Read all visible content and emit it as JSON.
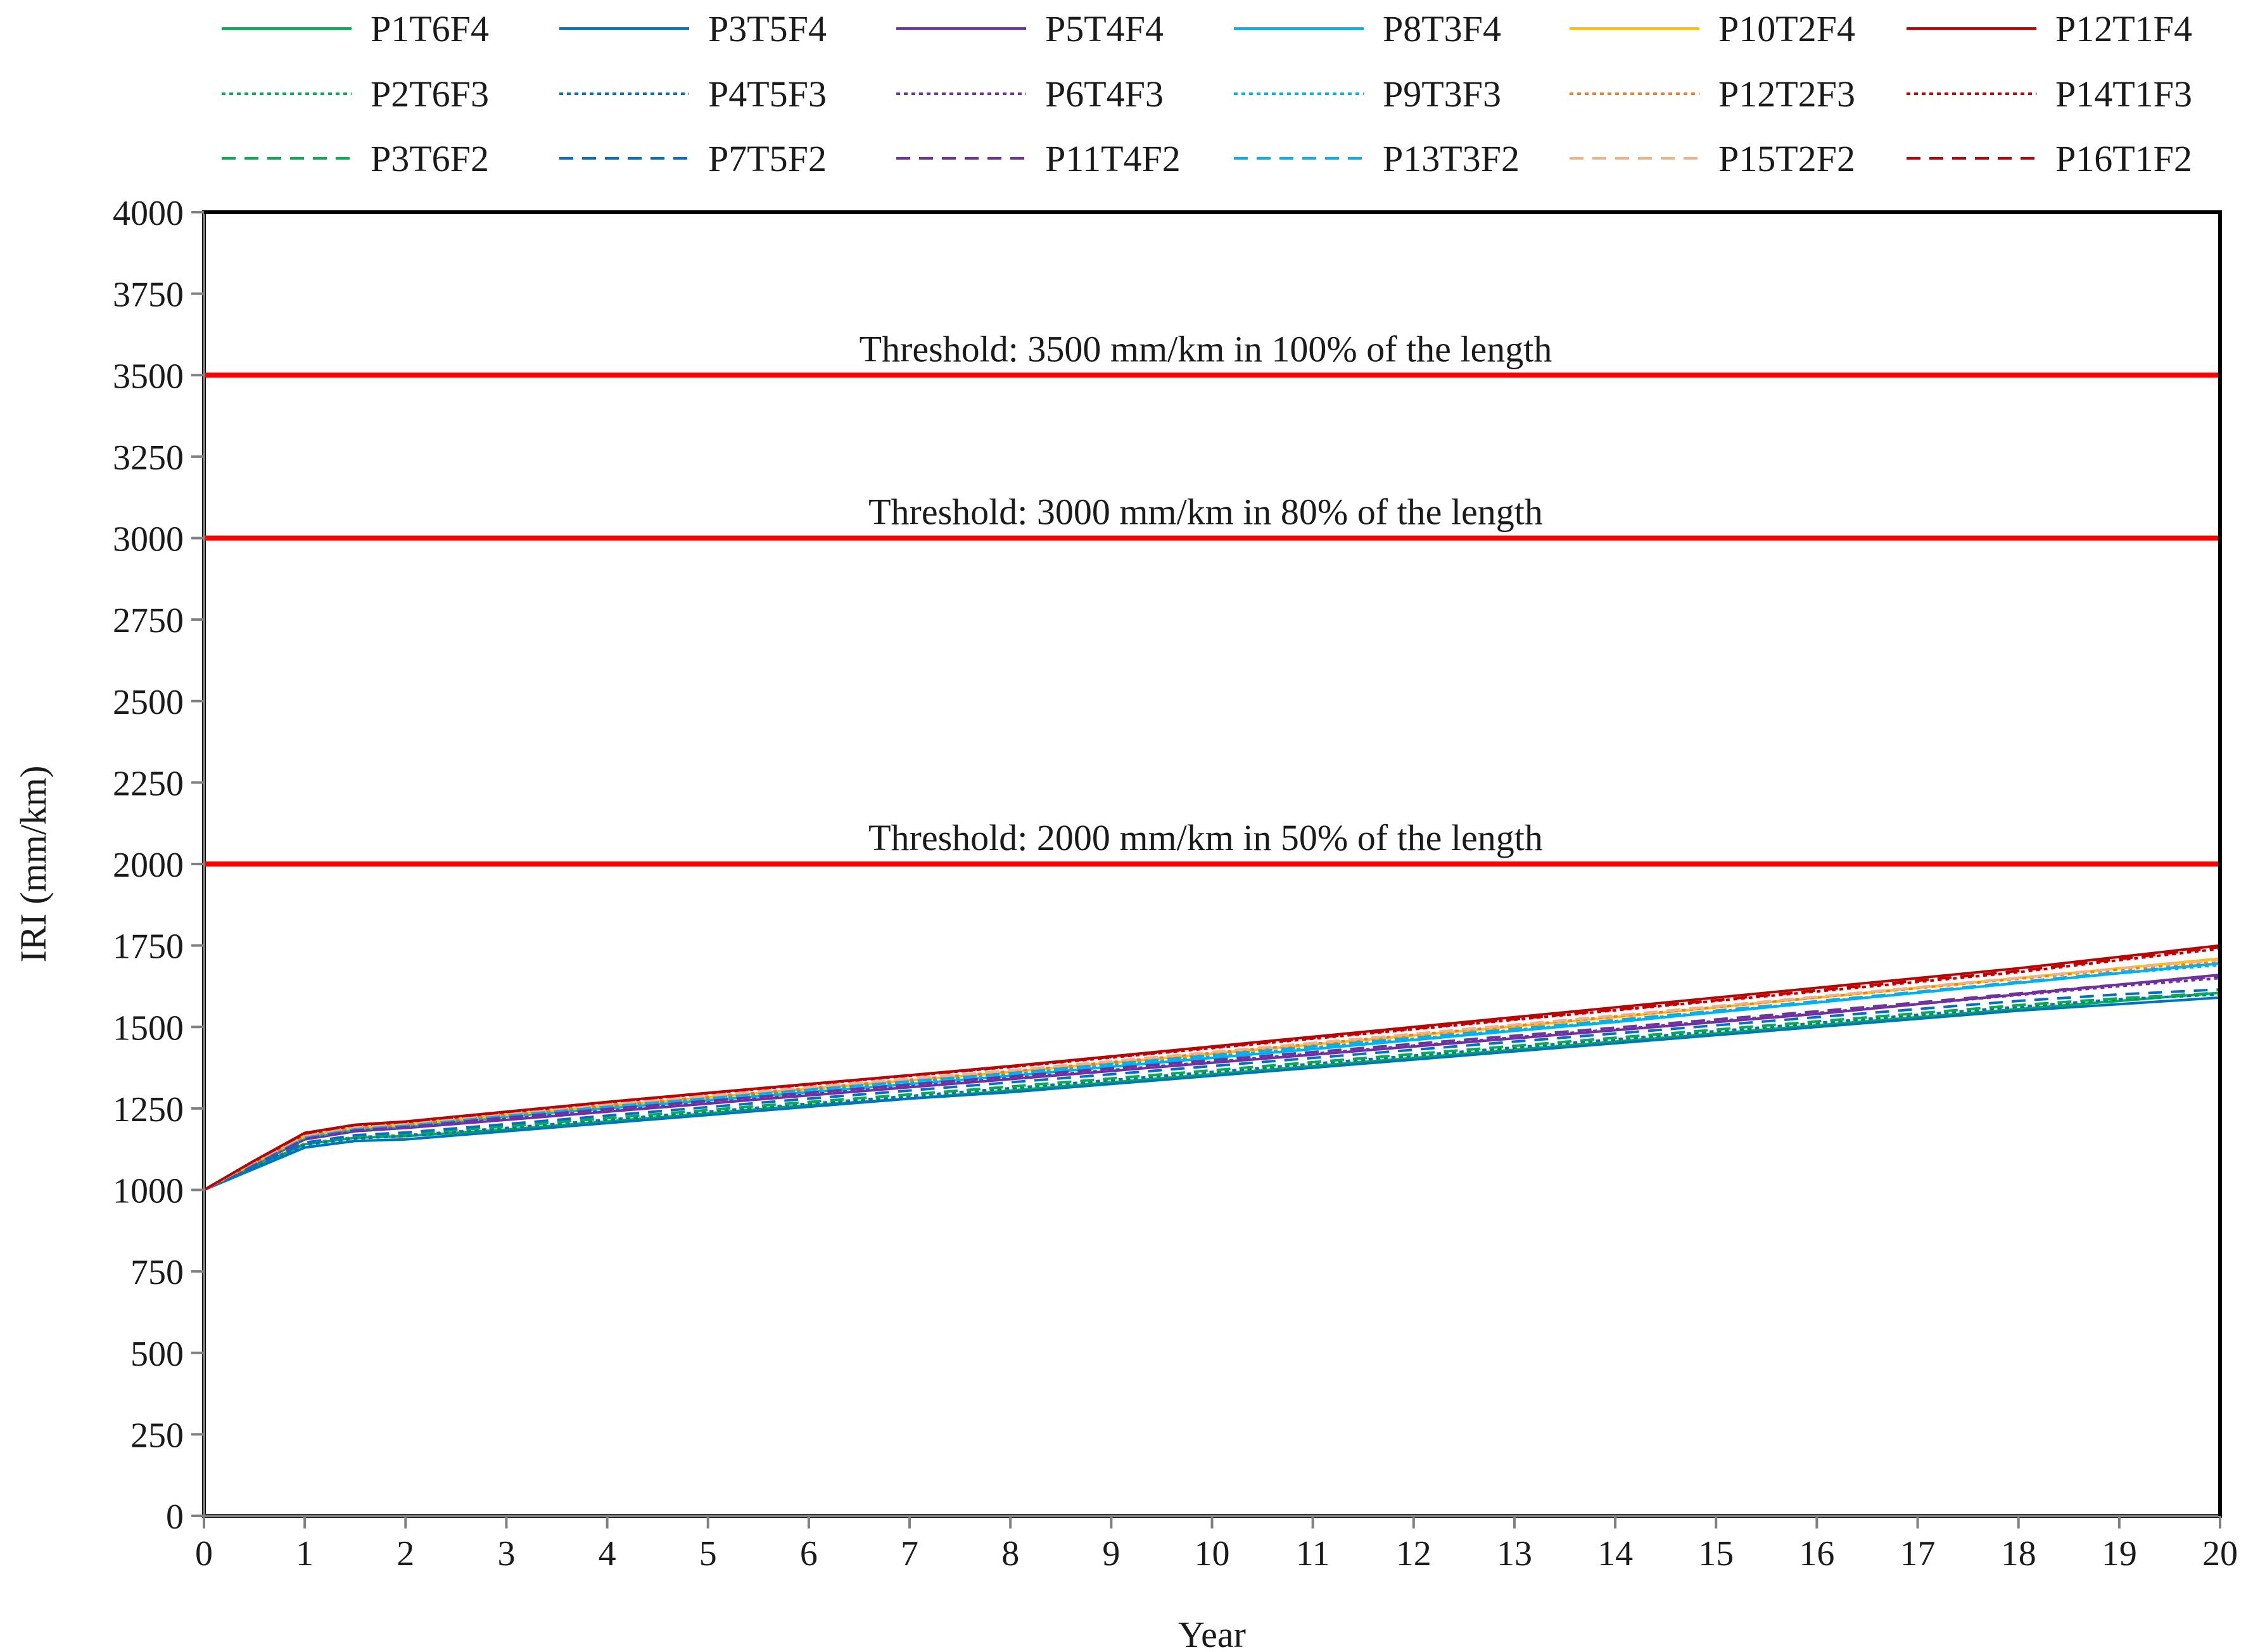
{
  "chart_data": {
    "type": "line",
    "xlabel": "Year",
    "ylabel": "IRI (mm/km)",
    "xlim": [
      0,
      20
    ],
    "ylim": [
      0,
      4000
    ],
    "x_ticks": [
      0,
      1,
      2,
      3,
      4,
      5,
      6,
      7,
      8,
      9,
      10,
      11,
      12,
      13,
      14,
      15,
      16,
      17,
      18,
      19,
      20
    ],
    "y_ticks": [
      0,
      250,
      500,
      750,
      1000,
      1250,
      1500,
      1750,
      2000,
      2250,
      2500,
      2750,
      3000,
      3250,
      3500,
      3750,
      4000
    ],
    "grid": false,
    "legend_position": "top",
    "thresholds": [
      {
        "value": 3500,
        "label": "Threshold: 3500 mm/km in 100% of the length",
        "color": "#ff0000"
      },
      {
        "value": 3000,
        "label": "Threshold: 3000 mm/km in 80% of the length",
        "color": "#ff0000"
      },
      {
        "value": 2000,
        "label": "Threshold: 2000 mm/km in 50% of the length",
        "color": "#ff0000"
      }
    ],
    "x": [
      0,
      0.5,
      1,
      1.5,
      2,
      3,
      4,
      5,
      6,
      7,
      8,
      9,
      10,
      11,
      12,
      13,
      14,
      15,
      16,
      17,
      18,
      19,
      20
    ],
    "series": [
      {
        "name": "P1T6F4",
        "color": "#00b050",
        "dash": "solid",
        "values": [
          1000,
          1070,
          1140,
          1160,
          1165,
          1185,
          1210,
          1235,
          1260,
          1280,
          1305,
          1330,
          1355,
          1380,
          1405,
          1430,
          1455,
          1480,
          1505,
          1530,
          1555,
          1580,
          1605
        ]
      },
      {
        "name": "P3T5F4",
        "color": "#0070c0",
        "dash": "solid",
        "values": [
          1000,
          1065,
          1130,
          1150,
          1155,
          1180,
          1205,
          1230,
          1255,
          1280,
          1300,
          1325,
          1350,
          1375,
          1400,
          1425,
          1450,
          1475,
          1500,
          1525,
          1550,
          1570,
          1590
        ]
      },
      {
        "name": "P5T4F4",
        "color": "#7030a0",
        "dash": "solid",
        "values": [
          1000,
          1078,
          1155,
          1180,
          1190,
          1215,
          1240,
          1265,
          1290,
          1315,
          1340,
          1365,
          1390,
          1415,
          1440,
          1465,
          1490,
          1515,
          1540,
          1570,
          1600,
          1630,
          1660
        ]
      },
      {
        "name": "P8T3F4",
        "color": "#00b0f0",
        "dash": "solid",
        "values": [
          1000,
          1080,
          1160,
          1185,
          1195,
          1225,
          1250,
          1275,
          1300,
          1325,
          1350,
          1378,
          1405,
          1432,
          1460,
          1488,
          1515,
          1545,
          1575,
          1605,
          1635,
          1665,
          1695
        ]
      },
      {
        "name": "P10T2F4",
        "color": "#ffc000",
        "dash": "solid",
        "values": [
          1000,
          1083,
          1165,
          1190,
          1200,
          1230,
          1258,
          1284,
          1310,
          1336,
          1362,
          1390,
          1418,
          1446,
          1474,
          1502,
          1530,
          1560,
          1590,
          1620,
          1650,
          1680,
          1710
        ]
      },
      {
        "name": "P12T1F4",
        "color": "#c00000",
        "dash": "solid",
        "values": [
          1000,
          1090,
          1175,
          1200,
          1210,
          1240,
          1270,
          1298,
          1325,
          1352,
          1380,
          1410,
          1440,
          1470,
          1500,
          1530,
          1560,
          1590,
          1620,
          1650,
          1680,
          1715,
          1750
        ]
      },
      {
        "name": "P2T6F3",
        "color": "#00b050",
        "dash": "dotted",
        "values": [
          1000,
          1072,
          1142,
          1162,
          1168,
          1190,
          1215,
          1240,
          1265,
          1288,
          1312,
          1337,
          1362,
          1387,
          1412,
          1437,
          1462,
          1487,
          1512,
          1537,
          1562,
          1585,
          1600
        ]
      },
      {
        "name": "P4T5F3",
        "color": "#0070c0",
        "dash": "dotted",
        "values": [
          1000,
          1070,
          1138,
          1158,
          1165,
          1190,
          1215,
          1240,
          1264,
          1288,
          1312,
          1337,
          1362,
          1387,
          1412,
          1437,
          1462,
          1487,
          1512,
          1537,
          1562,
          1585,
          1600
        ]
      },
      {
        "name": "P6T4F3",
        "color": "#7030a0",
        "dash": "dotted",
        "values": [
          1000,
          1080,
          1158,
          1182,
          1192,
          1218,
          1243,
          1268,
          1293,
          1318,
          1343,
          1368,
          1393,
          1418,
          1443,
          1468,
          1493,
          1518,
          1543,
          1570,
          1598,
          1625,
          1650
        ]
      },
      {
        "name": "P9T3F3",
        "color": "#00b0f0",
        "dash": "dotted",
        "values": [
          1000,
          1082,
          1162,
          1188,
          1198,
          1228,
          1254,
          1280,
          1305,
          1330,
          1355,
          1383,
          1410,
          1437,
          1464,
          1491,
          1518,
          1547,
          1576,
          1605,
          1635,
          1665,
          1690
        ]
      },
      {
        "name": "P12T2F3",
        "color": "#ed7d31",
        "dash": "dotted",
        "values": [
          1000,
          1084,
          1166,
          1192,
          1202,
          1232,
          1260,
          1286,
          1312,
          1338,
          1364,
          1392,
          1420,
          1448,
          1476,
          1504,
          1532,
          1561,
          1590,
          1619,
          1648,
          1676,
          1700
        ]
      },
      {
        "name": "P14T1F3",
        "color": "#c00000",
        "dash": "dotted",
        "values": [
          1000,
          1088,
          1172,
          1198,
          1208,
          1238,
          1268,
          1296,
          1323,
          1350,
          1377,
          1406,
          1435,
          1464,
          1493,
          1522,
          1551,
          1580,
          1609,
          1638,
          1668,
          1705,
          1740
        ]
      },
      {
        "name": "P3T6F2",
        "color": "#00b050",
        "dash": "dashed",
        "values": [
          1000,
          1074,
          1145,
          1165,
          1172,
          1195,
          1220,
          1245,
          1270,
          1293,
          1317,
          1342,
          1367,
          1392,
          1417,
          1442,
          1467,
          1492,
          1517,
          1542,
          1567,
          1588,
          1605
        ]
      },
      {
        "name": "P7T5F2",
        "color": "#0070c0",
        "dash": "dashed",
        "values": [
          1000,
          1074,
          1145,
          1168,
          1176,
          1202,
          1228,
          1254,
          1280,
          1305,
          1330,
          1355,
          1380,
          1405,
          1430,
          1455,
          1480,
          1505,
          1530,
          1555,
          1580,
          1600,
          1615
        ]
      },
      {
        "name": "P11T4F2",
        "color": "#7030a0",
        "dash": "dashed",
        "values": [
          1000,
          1082,
          1160,
          1185,
          1195,
          1222,
          1248,
          1273,
          1298,
          1323,
          1348,
          1373,
          1398,
          1423,
          1448,
          1473,
          1498,
          1523,
          1548,
          1575,
          1603,
          1630,
          1655
        ]
      },
      {
        "name": "P13T3F2",
        "color": "#00b0f0",
        "dash": "dashed",
        "values": [
          1000,
          1084,
          1164,
          1190,
          1200,
          1230,
          1257,
          1283,
          1308,
          1333,
          1358,
          1386,
          1413,
          1440,
          1467,
          1494,
          1521,
          1550,
          1579,
          1608,
          1638,
          1668,
          1695
        ]
      },
      {
        "name": "P15T2F2",
        "color": "#f4b183",
        "dash": "dashed",
        "values": [
          1000,
          1086,
          1168,
          1194,
          1204,
          1235,
          1263,
          1289,
          1315,
          1341,
          1367,
          1395,
          1423,
          1451,
          1479,
          1507,
          1535,
          1564,
          1593,
          1622,
          1651,
          1680,
          1705
        ]
      },
      {
        "name": "P16T1F2",
        "color": "#c00000",
        "dash": "dashed",
        "values": [
          1000,
          1089,
          1173,
          1199,
          1209,
          1239,
          1269,
          1297,
          1324,
          1351,
          1378,
          1408,
          1437,
          1466,
          1495,
          1524,
          1553,
          1582,
          1612,
          1642,
          1672,
          1708,
          1745
        ]
      }
    ]
  }
}
